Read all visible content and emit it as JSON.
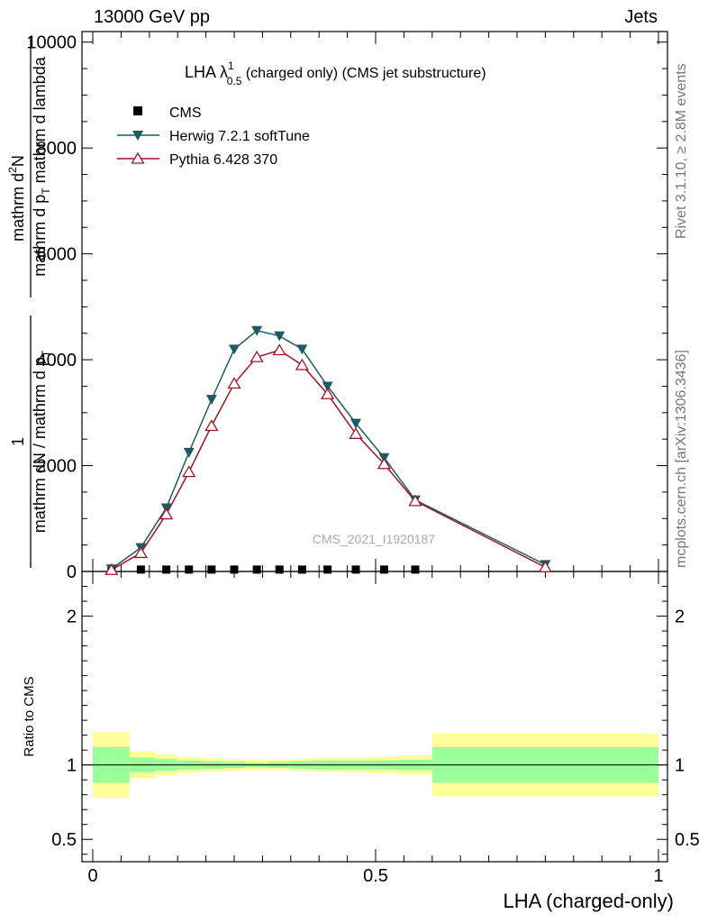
{
  "header": {
    "left": "13000 GeV pp",
    "right": "Jets"
  },
  "side_labels": {
    "rivet": "Rivet 3.1.10, ≥ 2.8M events",
    "site": "mcplots.cern.ch [arXiv:1306.3436]"
  },
  "title": {
    "main": "LHA λ",
    "sup": "1",
    "sub": "0.5",
    "rest": " (charged only) (CMS jet substructure)"
  },
  "watermark": "CMS_2021_I1920187",
  "y_axis_label": {
    "numerator_frac_top": "1",
    "numerator_frac_bottom": "mathrm dN / mathrm d p",
    "numerator_sub": "T",
    "main_top": "mathrm d",
    "main_top_sup": "2",
    "main_top_rest": "N",
    "main_bottom": "mathrm d p",
    "main_bottom_sub": "T",
    "main_bottom_rest": " mathrm d lambda"
  },
  "ratio_label": "Ratio to CMS",
  "x_axis_label": "LHA (charged-only)",
  "legend": [
    {
      "name": "CMS",
      "marker": "square",
      "color": "#000000"
    },
    {
      "name": "Herwig 7.2.1 softTune",
      "marker": "triangle-down",
      "color": "#1e5a64"
    },
    {
      "name": "Pythia 6.428 370",
      "marker": "triangle-up-open",
      "color": "#a01428"
    }
  ],
  "chart_data": {
    "type": "line",
    "xlim": [
      0,
      1
    ],
    "ylim": [
      0,
      10200
    ],
    "x_ticks": [
      0,
      0.5,
      1
    ],
    "x_tick_labels": [
      "0",
      "0.5",
      "1"
    ],
    "y_ticks": [
      0,
      2000,
      4000,
      6000,
      8000,
      10000
    ],
    "y_tick_labels": [
      "0",
      "2000",
      "4000",
      "6000",
      "8000",
      "10000"
    ],
    "x": [
      0.033,
      0.085,
      0.13,
      0.17,
      0.21,
      0.25,
      0.29,
      0.33,
      0.37,
      0.415,
      0.465,
      0.515,
      0.57,
      0.8
    ],
    "bin_edges": [
      0,
      0.065,
      0.11,
      0.15,
      0.19,
      0.23,
      0.27,
      0.31,
      0.35,
      0.39,
      0.44,
      0.49,
      0.54,
      0.6,
      1.0
    ],
    "series": [
      {
        "name": "CMS",
        "values": [
          10,
          10,
          10,
          10,
          10,
          10,
          10,
          10,
          10,
          10,
          10,
          10,
          10,
          10
        ]
      },
      {
        "name": "Herwig 7.2.1 softTune",
        "values": [
          50,
          450,
          1200,
          2250,
          3250,
          4200,
          4550,
          4450,
          4200,
          3500,
          2800,
          2150,
          1350,
          130
        ]
      },
      {
        "name": "Pythia 6.428 370",
        "values": [
          30,
          350,
          1080,
          1880,
          2750,
          3550,
          4050,
          4180,
          3900,
          3350,
          2600,
          2030,
          1330,
          80
        ]
      }
    ],
    "ratio": {
      "ylabel": "Ratio to CMS",
      "ylim": [
        0.35,
        2.3
      ],
      "y_ticks": [
        0.5,
        1,
        2
      ],
      "y_tick_labels": [
        "0.5",
        "1",
        "2"
      ],
      "band_inner_halfwidth": [
        0.12,
        0.05,
        0.04,
        0.03,
        0.025,
        0.02,
        0.015,
        0.02,
        0.025,
        0.03,
        0.03,
        0.03,
        0.035,
        0.12
      ],
      "band_outer_halfwidth": [
        0.22,
        0.09,
        0.07,
        0.055,
        0.045,
        0.04,
        0.035,
        0.035,
        0.04,
        0.045,
        0.05,
        0.055,
        0.065,
        0.21
      ],
      "band_colors": {
        "inner": "#99ff99",
        "outer": "#ffff99"
      }
    }
  }
}
